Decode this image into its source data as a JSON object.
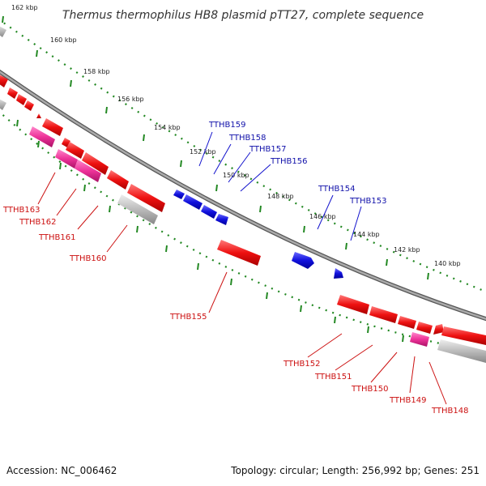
{
  "title": "Thermus thermophilus HB8 plasmid pTT27, complete sequence",
  "accession": "Accession: NC_006462",
  "topology": "Topology: circular; Length: 256,992 bp; Genes: 251",
  "colors": {
    "forward": "#ee1111",
    "reverse": "#1111dd",
    "pink": "#ee3399",
    "grey": "#b8b8b8",
    "tick": "#228822",
    "backbone": "#888888"
  },
  "tick_labels": [
    "140 kbp",
    "142 kbp",
    "144 kbp",
    "146 kbp",
    "148 kbp",
    "150 kbp",
    "152 kbp",
    "154 kbp",
    "156 kbp",
    "158 kbp",
    "160 kbp",
    "162 kbp"
  ],
  "blue_labels": [
    "TTHB159",
    "TTHB158",
    "TTHB157",
    "TTHB156",
    "TTHB154",
    "TTHB153"
  ],
  "red_labels": [
    "TTHB163",
    "TTHB162",
    "TTHB161",
    "TTHB160",
    "TTHB155",
    "TTHB152",
    "TTHB151",
    "TTHB150",
    "TTHB149",
    "TTHB148"
  ]
}
